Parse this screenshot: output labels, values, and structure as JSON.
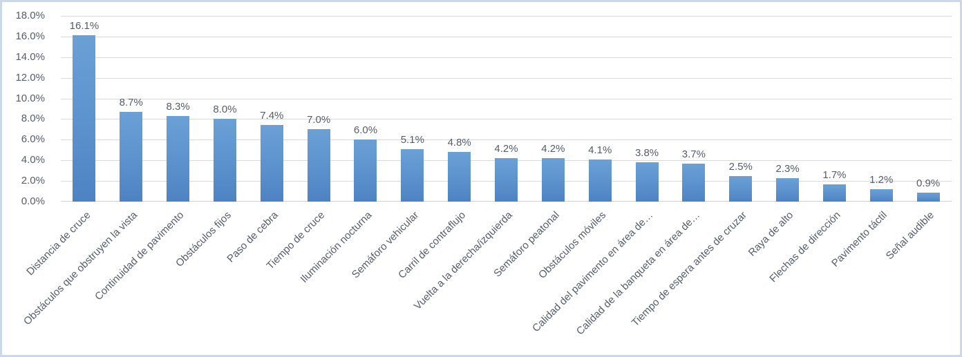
{
  "chart_data": {
    "type": "bar",
    "title": "",
    "xlabel": "",
    "ylabel": "",
    "legend": "none",
    "grid": "horizontal",
    "ylim": [
      0,
      18
    ],
    "y_tick_values": [
      0,
      2,
      4,
      6,
      8,
      10,
      12,
      14,
      16,
      18
    ],
    "y_tick_labels": [
      "0.0%",
      "2.0%",
      "4.0%",
      "6.0%",
      "8.0%",
      "10.0%",
      "12.0%",
      "14.0%",
      "16.0%",
      "18.0%"
    ],
    "categories": [
      "Distancia de cruce",
      "Obstáculos que obstruyen la vista",
      "Continuidad de pavimento",
      "Obstáculos fijos",
      "Paso de cebra",
      "Tiempo de cruce",
      "Iluminación nocturna",
      "Semáforo vehicular",
      "Carril de contraflujo",
      "Vuelta a la derecha/izquierda",
      "Semáforo peatonal",
      "Obstáculos móviles",
      "Calidad del pavimento en área de…",
      "Calidad de la banqueta en área de…",
      "Tiempo de espera antes de cruzar",
      "Raya de alto",
      "Flechas de dirección",
      "Pavimento táctil",
      "Señal audible"
    ],
    "values": [
      16.1,
      8.7,
      8.3,
      8.0,
      7.4,
      7.0,
      6.0,
      5.1,
      4.8,
      4.2,
      4.2,
      4.1,
      3.8,
      3.7,
      2.5,
      2.3,
      1.7,
      1.2,
      0.9
    ],
    "data_labels": [
      "16.1%",
      "8.7%",
      "8.3%",
      "8.0%",
      "7.4%",
      "7.0%",
      "6.0%",
      "5.1%",
      "4.8%",
      "4.2%",
      "4.2%",
      "4.1%",
      "3.8%",
      "3.7%",
      "2.5%",
      "2.3%",
      "1.7%",
      "1.2%",
      "0.9%"
    ],
    "colors": {
      "bar_gradient_top": "#6ba0d6",
      "bar_gradient_bottom": "#4d83c3",
      "gridline": "#d9d9d9",
      "axis_line": "#d0d0d0",
      "text": "#555d6b",
      "frame_border": "#ccd7e8",
      "background": "#ffffff"
    }
  }
}
